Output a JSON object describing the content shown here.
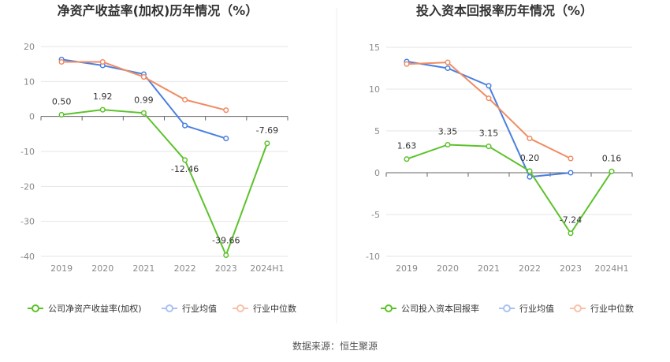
{
  "source_label": "数据来源：恒生聚源",
  "chart_data": [
    {
      "type": "line",
      "title": "净资产收益率(加权)历年情况（%）",
      "categories": [
        "2019",
        "2020",
        "2021",
        "2022",
        "2023",
        "2024H1"
      ],
      "ylim": [
        -40,
        20
      ],
      "yticks": [
        20,
        10,
        0,
        -10,
        -20,
        -30,
        -40
      ],
      "grid": true,
      "legend_position": "bottom",
      "series": [
        {
          "name": "公司净资产收益率(加权)",
          "color": "#5cc22b",
          "values": [
            0.5,
            1.92,
            0.99,
            -12.46,
            -39.66,
            -7.69
          ],
          "labels": [
            "0.50",
            "1.92",
            "0.99",
            "-12.46",
            "-39.66",
            "-7.69"
          ]
        },
        {
          "name": "行业均值",
          "color": "#4a7fe0",
          "values": [
            16.3,
            14.6,
            12.1,
            -2.6,
            -6.3,
            null
          ]
        },
        {
          "name": "行业中位数",
          "color": "#f08c63",
          "values": [
            15.6,
            15.6,
            11.3,
            4.8,
            1.8,
            null
          ]
        }
      ]
    },
    {
      "type": "line",
      "title": "投入资本回报率历年情况（%）",
      "categories": [
        "2019",
        "2020",
        "2021",
        "2022",
        "2023",
        "2024H1"
      ],
      "ylim": [
        -10,
        15
      ],
      "yticks": [
        15,
        10,
        5,
        0,
        -5,
        -10
      ],
      "grid": true,
      "legend_position": "bottom",
      "series": [
        {
          "name": "公司投入资本回报率",
          "color": "#5cc22b",
          "values": [
            1.63,
            3.35,
            3.15,
            0.2,
            -7.24,
            0.16
          ],
          "labels": [
            "1.63",
            "3.35",
            "3.15",
            "0.20",
            "-7.24",
            "0.16"
          ]
        },
        {
          "name": "行业均值",
          "color": "#4a7fe0",
          "values": [
            13.3,
            12.5,
            10.4,
            -0.5,
            0.0,
            null
          ]
        },
        {
          "name": "行业中位数",
          "color": "#f08c63",
          "values": [
            13.0,
            13.2,
            8.9,
            4.1,
            1.7,
            null
          ]
        }
      ]
    }
  ]
}
